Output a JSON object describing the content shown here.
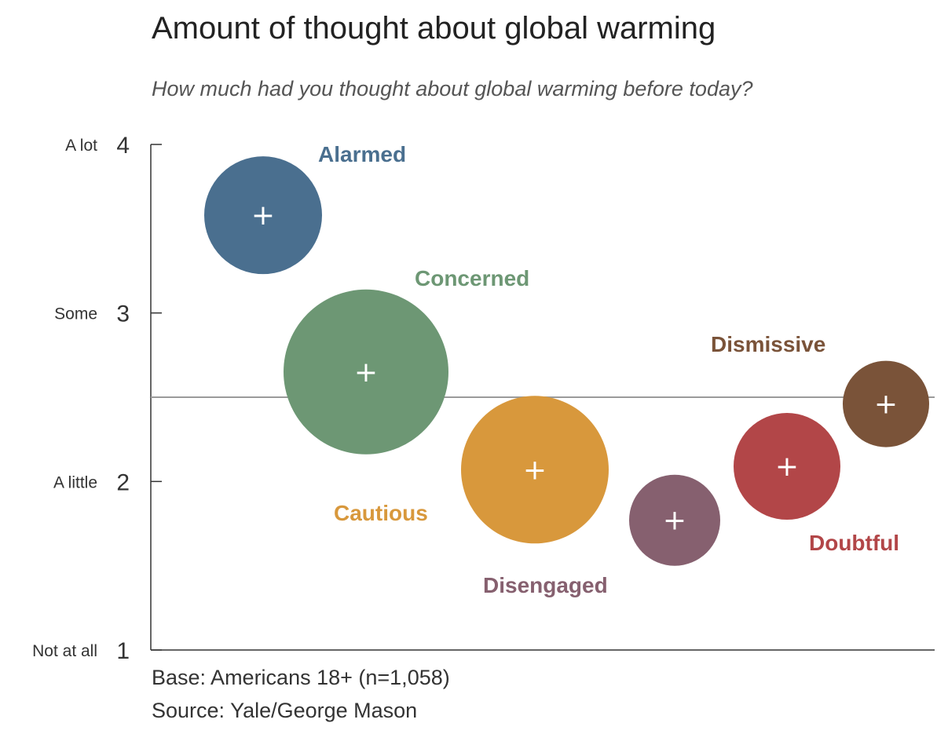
{
  "chart_data": {
    "type": "scatter",
    "title": "Amount of thought about global warming",
    "subtitle": "How much had you thought about global warming before today?",
    "ylim": [
      1,
      4
    ],
    "y_ticks": [
      {
        "value": 4,
        "label": "4",
        "word": "A lot"
      },
      {
        "value": 3,
        "label": "3",
        "word": "Some"
      },
      {
        "value": 2,
        "label": "2",
        "word": "A little"
      },
      {
        "value": 1,
        "label": "1",
        "word": "Not at all"
      }
    ],
    "reference_line": 2.5,
    "series": [
      {
        "name": "Alarmed",
        "y": 3.58,
        "color": "#4a6f8f"
      },
      {
        "name": "Concerned",
        "y": 2.65,
        "color": "#6d9774"
      },
      {
        "name": "Cautious",
        "y": 2.07,
        "color": "#d8983c"
      },
      {
        "name": "Disengaged",
        "y": 1.77,
        "color": "#86606f"
      },
      {
        "name": "Doubtful",
        "y": 2.09,
        "color": "#b24648"
      },
      {
        "name": "Dismissive",
        "y": 2.46,
        "color": "#7a5339"
      }
    ],
    "point_marker": "+",
    "footnotes": [
      "Base: Americans 18+ (n=1,058)",
      "Source: Yale/George Mason"
    ]
  }
}
